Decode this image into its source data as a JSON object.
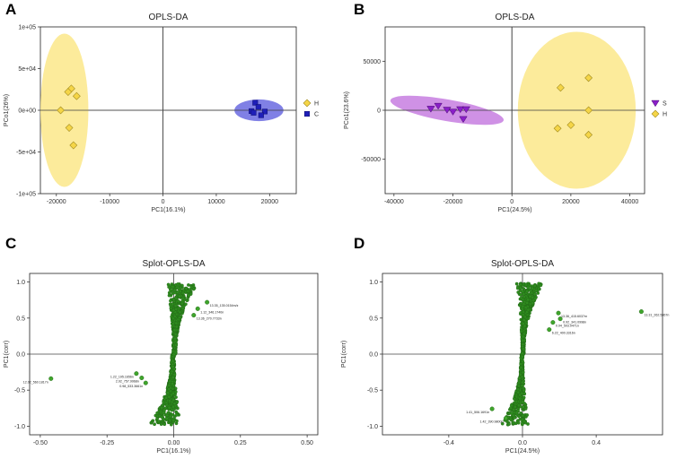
{
  "colors": {
    "yellow": "#f5d547",
    "yellow_ellipse": "#fbe88a",
    "blue": "#1f1fb8",
    "blue_ellipse": "#6a6ae0",
    "purple": "#8a1fc8",
    "purple_ellipse": "#c77ee0",
    "green": "#2e8b1e"
  },
  "panels": [
    {
      "letter": "A",
      "title": "OPLS-DA"
    },
    {
      "letter": "B",
      "title": "OPLS-DA"
    },
    {
      "letter": "C",
      "title": "Splot-OPLS-DA"
    },
    {
      "letter": "D",
      "title": "Splot-OPLS-DA"
    }
  ],
  "chart_data": [
    {
      "type": "scatter",
      "title": "OPLS-DA",
      "xlabel": "PC1(16.1%)",
      "ylabel": "PCo1(26%)",
      "xlim": [
        -23000,
        25000
      ],
      "ylim": [
        -100000,
        100000
      ],
      "xticks": [
        -20000,
        -10000,
        0,
        10000,
        20000
      ],
      "xtick_labels": [
        "-20000",
        "-10000",
        "0",
        "10000",
        "20000"
      ],
      "yticks": [
        100000,
        50000,
        0,
        -50000,
        -100000
      ],
      "ytick_labels": [
        "1e+05",
        "5e+04",
        "0e+00",
        "-5e+04",
        "-1e+05"
      ],
      "legend": [
        "H",
        "C"
      ],
      "series": [
        {
          "name": "H",
          "shape": "diamond",
          "color": "#f5d547",
          "ellipse": {
            "cx": -18500,
            "cy": 0,
            "rx": 4500,
            "ry": 92000,
            "color": "#fbe88a"
          },
          "points": [
            [
              -17200,
              26000
            ],
            [
              -16200,
              17000
            ],
            [
              -17800,
              22000
            ],
            [
              -19200,
              0
            ],
            [
              -17600,
              -21000
            ],
            [
              -16800,
              -42000
            ]
          ]
        },
        {
          "name": "C",
          "shape": "square",
          "color": "#1f1fb8",
          "ellipse": {
            "cx": 18000,
            "cy": 0,
            "rx": 4600,
            "ry": 13000,
            "color": "#6a6ae0"
          },
          "points": [
            [
              17300,
              9000
            ],
            [
              17900,
              4000
            ],
            [
              16600,
              -1000
            ],
            [
              19100,
              -1500
            ],
            [
              18400,
              -6000
            ],
            [
              17000,
              -3000
            ]
          ]
        }
      ]
    },
    {
      "type": "scatter",
      "title": "OPLS-DA",
      "xlabel": "PC1(24.5%)",
      "ylabel": "PCo1(23.6%)",
      "xlim": [
        -43000,
        45000
      ],
      "ylim": [
        -85000,
        85000
      ],
      "xticks": [
        -40000,
        -20000,
        0,
        20000,
        40000
      ],
      "xtick_labels": [
        "-40000",
        "-20000",
        "0",
        "20000",
        "40000"
      ],
      "yticks": [
        50000,
        0,
        -50000
      ],
      "ytick_labels": [
        "50000",
        "0",
        "-50000"
      ],
      "legend": [
        "S",
        "H"
      ],
      "series": [
        {
          "name": "S",
          "shape": "triangle-down",
          "color": "#8a1fc8",
          "ellipse": {
            "cx": -22000,
            "cy": 0,
            "rx": 19500,
            "ry": 11000,
            "rot": 10,
            "color": "#c77ee0"
          },
          "points": [
            [
              -27500,
              1500
            ],
            [
              -25000,
              4500
            ],
            [
              -22000,
              500
            ],
            [
              -20000,
              -1500
            ],
            [
              -17500,
              1000
            ],
            [
              -15500,
              1000
            ],
            [
              -16500,
              -9000
            ]
          ]
        },
        {
          "name": "H",
          "shape": "diamond",
          "color": "#f5d547",
          "ellipse": {
            "cx": 22000,
            "cy": 0,
            "rx": 20000,
            "ry": 80000,
            "color": "#fbe88a"
          },
          "points": [
            [
              26000,
              33000
            ],
            [
              16500,
              23000
            ],
            [
              26000,
              0
            ],
            [
              20000,
              -15000
            ],
            [
              15500,
              -18500
            ],
            [
              26000,
              -25000
            ]
          ]
        }
      ]
    },
    {
      "type": "scatter",
      "title": "Splot-OPLS-DA",
      "xlabel": "PC1(16.1%)",
      "ylabel": "PC1(corr)",
      "xlim": [
        -0.54,
        0.54
      ],
      "ylim": [
        -1.12,
        1.12
      ],
      "xticks": [
        -0.5,
        -0.25,
        0,
        0.25,
        0.5
      ],
      "xtick_labels": [
        "-0.50",
        "-0.25",
        "0.00",
        "0.25",
        "0.50"
      ],
      "yticks": [
        1.0,
        0.5,
        0.0,
        -0.5,
        -1.0
      ],
      "ytick_labels": [
        "1.0",
        "0.5",
        "0.0",
        "-0.5",
        "-1.0"
      ],
      "color": "#2e8b1e",
      "seed": 31,
      "highlights": [
        {
          "x": 0.125,
          "y": 0.72,
          "label": "13.35_135.0154m/z"
        },
        {
          "x": 0.09,
          "y": 0.63,
          "label": "1.12_346.1740n"
        },
        {
          "x": 0.075,
          "y": 0.54,
          "label": "13.36_270.7733n"
        },
        {
          "x": -0.46,
          "y": -0.34,
          "label": "12.02_560.1817n"
        },
        {
          "x": -0.14,
          "y": -0.27,
          "label": "1.22_195.1656n"
        },
        {
          "x": -0.12,
          "y": -0.33,
          "label": "2.92_757.9968n"
        },
        {
          "x": -0.105,
          "y": -0.4,
          "label": "0.98_533.3661n"
        }
      ]
    },
    {
      "type": "scatter",
      "title": "Splot-OPLS-DA",
      "xlabel": "PC1(24.5%)",
      "ylabel": "PC1(corr)",
      "xlim": [
        -0.76,
        0.76
      ],
      "ylim": [
        -1.12,
        1.12
      ],
      "xticks": [
        -0.4,
        0,
        0.4
      ],
      "xtick_labels": [
        "-0.4",
        "0.0",
        "0.4"
      ],
      "yticks": [
        1.0,
        0.5,
        0.0,
        -0.5,
        -1.0
      ],
      "ytick_labels": [
        "1.0",
        "0.5",
        "0.0",
        "-0.5",
        "-1.0"
      ],
      "color": "#2e8b1e",
      "seed": 77,
      "highlights": [
        {
          "x": 0.645,
          "y": 0.59,
          "label": "13.31_262.5867n"
        },
        {
          "x": 0.195,
          "y": 0.57,
          "label": "13.36_415.6037m"
        },
        {
          "x": 0.205,
          "y": 0.49,
          "label": "0.92_341.0998n"
        },
        {
          "x": 0.165,
          "y": 0.44,
          "label": "0.94_503.0471n"
        },
        {
          "x": 0.145,
          "y": 0.34,
          "label": "6.22_400.3316n"
        },
        {
          "x": -0.165,
          "y": -0.76,
          "label": "1.41_506.1691n"
        },
        {
          "x": -0.09,
          "y": -0.89,
          "label": "1.42_390.9800n"
        }
      ]
    }
  ]
}
